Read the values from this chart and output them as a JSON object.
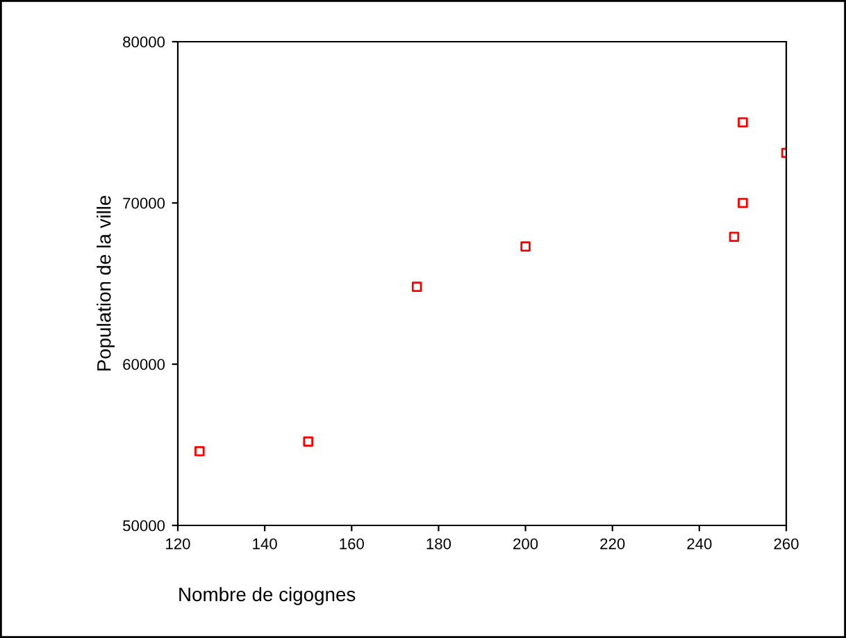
{
  "chart_data": {
    "type": "scatter",
    "xlabel": "Nombre de cigognes",
    "ylabel": "Population de la ville",
    "x": [
      125,
      150,
      175,
      200,
      248,
      250,
      250,
      260
    ],
    "series": [
      {
        "color": "#ff0000",
        "values": [
          54600,
          55200,
          64800,
          67300,
          67900,
          70000,
          75000,
          73100
        ]
      }
    ],
    "marker": "square",
    "xlim": [
      120,
      260
    ],
    "ylim": [
      50000,
      80000
    ],
    "xticks": [
      120,
      140,
      160,
      180,
      200,
      220,
      240,
      260
    ],
    "yticks": [
      50000,
      60000,
      70000,
      80000
    ],
    "grid": false,
    "legend": false
  }
}
